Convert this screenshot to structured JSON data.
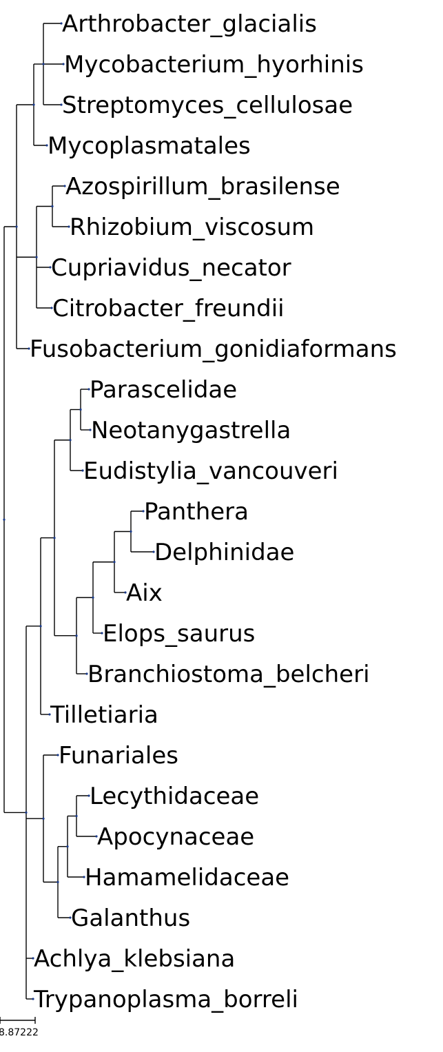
{
  "tree": {
    "leaves": [
      "Arthrobacter_glacialis",
      "Mycobacterium_hyorhinis",
      "Streptomyces_cellulosae",
      "Mycoplasmatales",
      "Azospirillum_brasilense",
      "Rhizobium_viscosum",
      "Cupriavidus_necator",
      "Citrobacter_freundii",
      "Fusobacterium_gonidiaformans",
      "Parascelidae",
      "Neotanygastrella",
      "Eudistylia_vancouveri",
      "Panthera",
      "Delphinidae",
      "Aix",
      "Elops_saurus",
      "Branchiostoma_belcheri",
      "Tilletiaria",
      "Funariales",
      "Lecythidaceae",
      "Apocynaceae",
      "Hamamelidaceae",
      "Galanthus",
      "Achlya_klebsiana",
      "Trypanoplasma_borreli"
    ],
    "topology": "((((Arthrobacter_glacialis,Mycobacterium_hyorhinis,Streptomyces_cellulosae),Mycoplasmatales),((Azospirillum_brasilense,Rhizobium_viscosum),Cupriavidus_necator,Citrobacter_freundii),Fusobacterium_gonidiaformans),((((Parascelidae,Neotanygastrella),Eudistylia_vancouveri),((((Panthera,Delphinidae),Aix),Elops_saurus),Branchiostoma_belcheri)),Tilletiaria),((Funariales,(((Lecythidaceae,Apocynaceae),Hamamelidaceae),Galanthus)),Achlya_klebsiana,Trypanoplasma_borreli));",
    "colors": {
      "branch": "#000000",
      "node": "#1a3a8a",
      "label": "#000000"
    }
  },
  "scale_bar": {
    "label": "8.87222"
  }
}
